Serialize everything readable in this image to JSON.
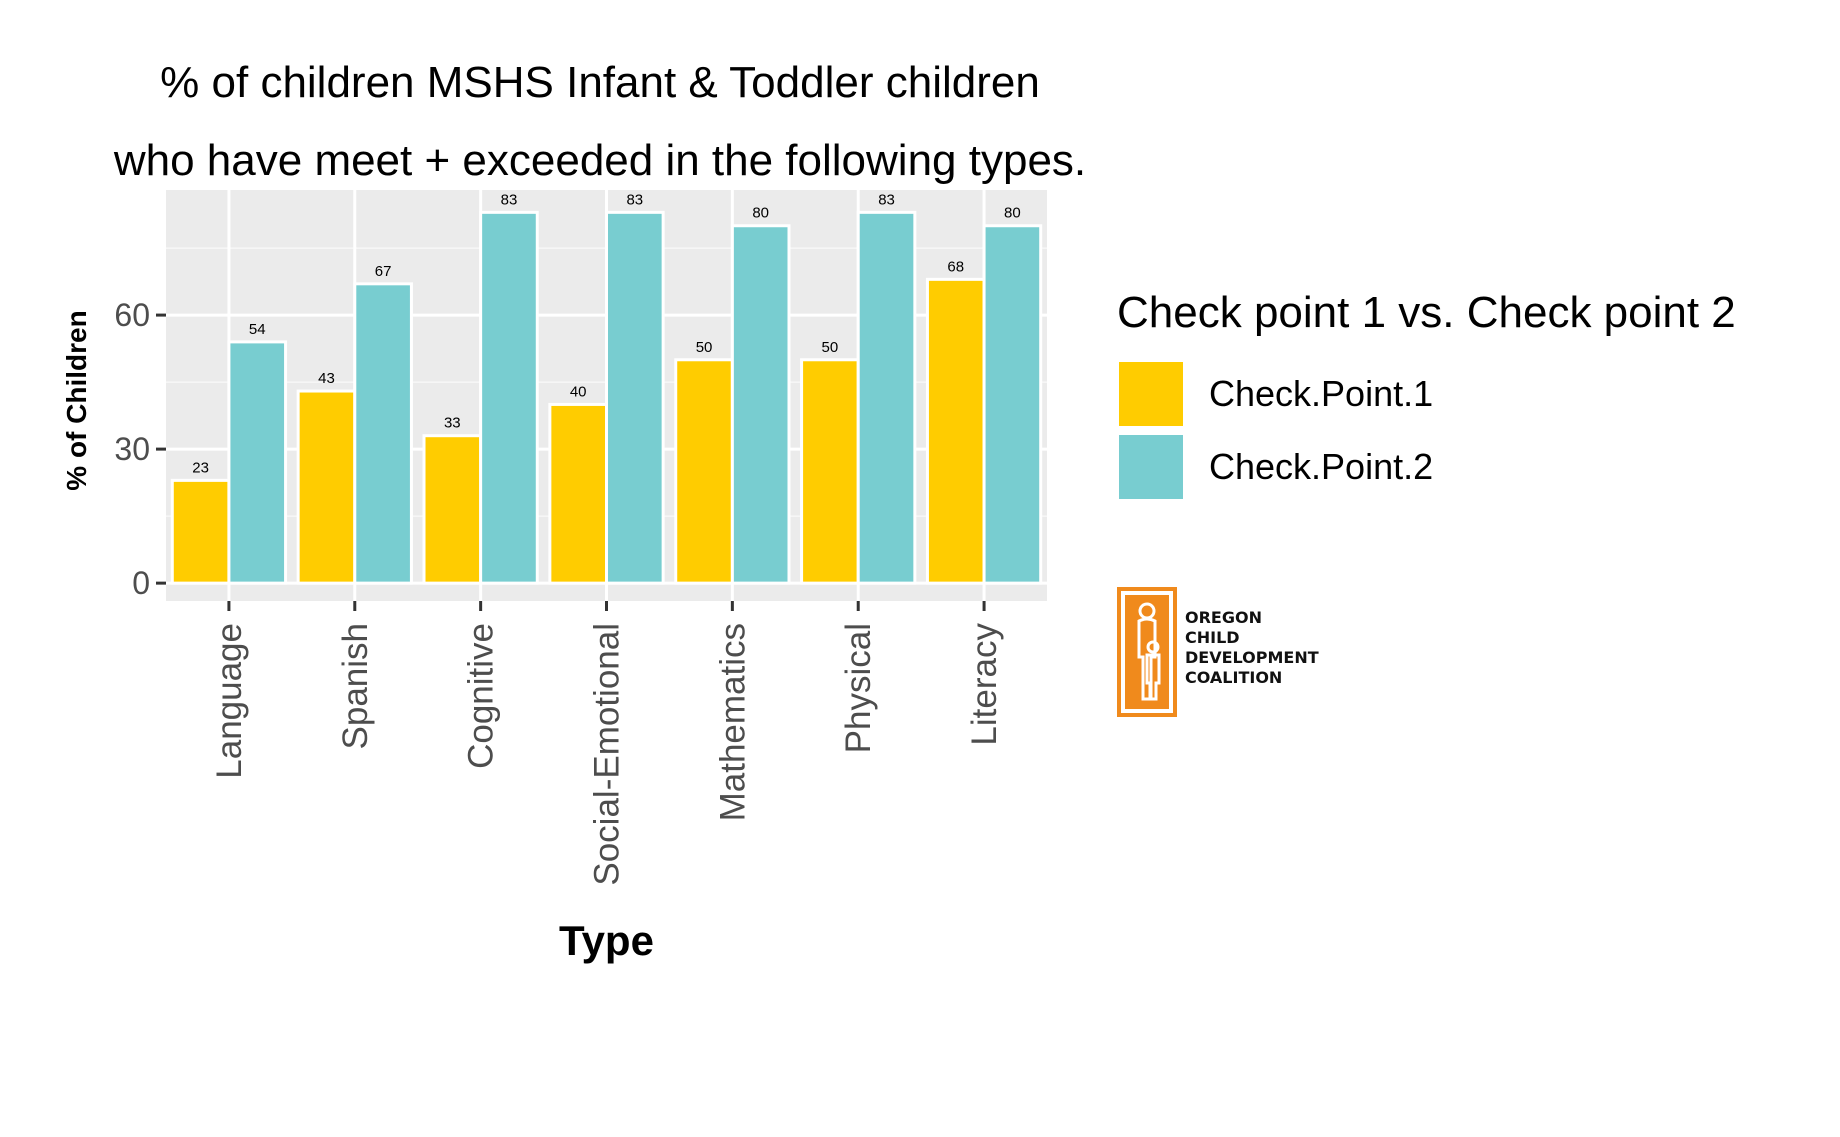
{
  "title": {
    "line1": "% of children MSHS Infant & Toddler children",
    "line2": "who have meet + exceeded in the following types."
  },
  "legend": {
    "title": "Check point 1 vs. Check point 2",
    "items": [
      {
        "label": "Check.Point.1",
        "color": "#FFCC00"
      },
      {
        "label": "Check.Point.2",
        "color": "#78CDD0"
      }
    ]
  },
  "logo": {
    "lines": [
      "OREGON",
      "CHILD",
      "DEVELOPMENT",
      "COALITION"
    ],
    "color": "#F08A1C"
  },
  "chart_data": {
    "type": "bar",
    "xlabel": "Type",
    "ylabel": "% of Children",
    "categories": [
      "Language",
      "Spanish",
      "Cognitive",
      "Social-Emotional",
      "Mathematics",
      "Physical",
      "Literacy"
    ],
    "series": [
      {
        "name": "Check.Point.1",
        "color": "#FFCC00",
        "values": [
          23,
          43,
          33,
          40,
          50,
          50,
          68
        ]
      },
      {
        "name": "Check.Point.2",
        "color": "#78CDD0",
        "values": [
          54,
          67,
          83,
          83,
          80,
          83,
          80
        ]
      }
    ],
    "yticks": [
      0,
      30,
      60
    ],
    "ylim": [
      -4,
      88
    ],
    "grid": true,
    "data_labels": true,
    "legend_position": "right"
  }
}
